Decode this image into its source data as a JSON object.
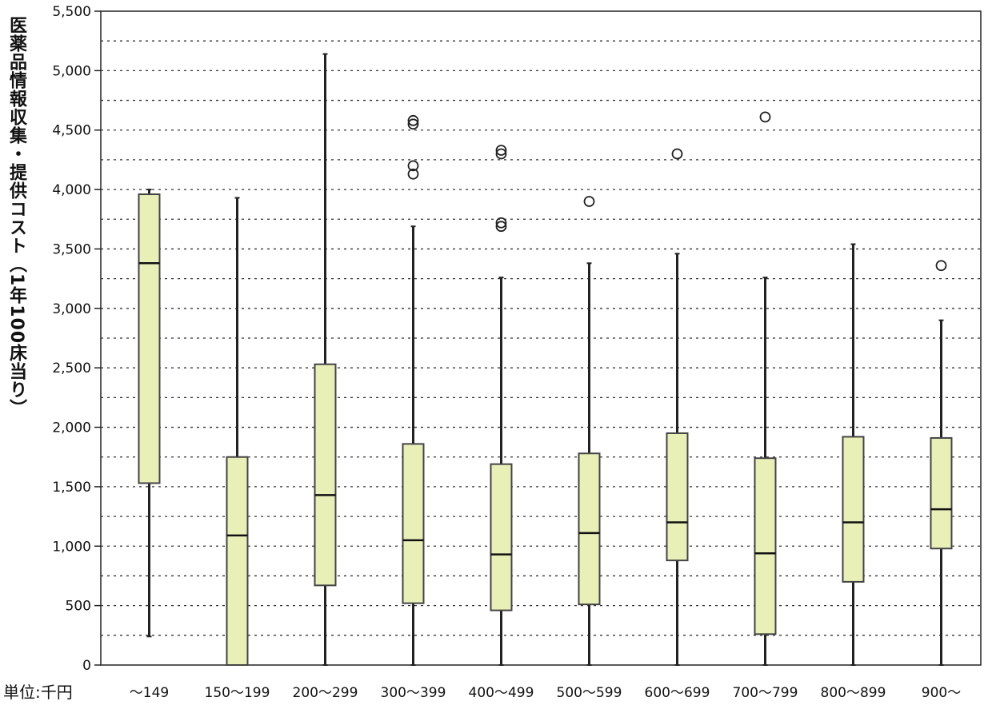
{
  "chart_data": {
    "type": "box",
    "title": "",
    "ylabel": "医薬品情報収集・提供コスト（1年100床当り）",
    "unit_label": "単位:千円",
    "xlabel": "",
    "ylim": [
      0,
      5500
    ],
    "yticks": [
      0,
      500,
      1000,
      1500,
      2000,
      2500,
      3000,
      3500,
      4000,
      4500,
      5000,
      5500
    ],
    "ytick_labels": [
      "0",
      "500",
      "1,000",
      "1,500",
      "2,000",
      "2,500",
      "3,000",
      "3,500",
      "4,000",
      "4,500",
      "5,000",
      "5,500"
    ],
    "minor_grid_step": 250,
    "grid": true,
    "box_color": "#e8f0b8",
    "categories": [
      "～149",
      "150～199",
      "200～299",
      "300～399",
      "400～499",
      "500～599",
      "600～699",
      "700～799",
      "800～899",
      "900～"
    ],
    "boxes": [
      {
        "whisker_low": 240,
        "q1": 1530,
        "median": 3380,
        "q3": 3960,
        "whisker_high": 4000,
        "outliers": []
      },
      {
        "whisker_low": 0,
        "q1": 0,
        "median": 1090,
        "q3": 1750,
        "whisker_high": 3930,
        "outliers": []
      },
      {
        "whisker_low": 0,
        "q1": 670,
        "median": 1430,
        "q3": 2530,
        "whisker_high": 5140,
        "outliers": []
      },
      {
        "whisker_low": 0,
        "q1": 520,
        "median": 1050,
        "q3": 1860,
        "whisker_high": 3690,
        "outliers": [
          4130,
          4200,
          4550,
          4580
        ]
      },
      {
        "whisker_low": 0,
        "q1": 460,
        "median": 930,
        "q3": 1690,
        "whisker_high": 3260,
        "outliers": [
          3690,
          3720,
          4300,
          4330
        ]
      },
      {
        "whisker_low": 0,
        "q1": 510,
        "median": 1110,
        "q3": 1780,
        "whisker_high": 3380,
        "outliers": [
          3900
        ]
      },
      {
        "whisker_low": 0,
        "q1": 880,
        "median": 1200,
        "q3": 1950,
        "whisker_high": 3460,
        "outliers": [
          4300
        ]
      },
      {
        "whisker_low": 0,
        "q1": 260,
        "median": 940,
        "q3": 1740,
        "whisker_high": 3260,
        "outliers": [
          4610
        ]
      },
      {
        "whisker_low": 0,
        "q1": 700,
        "median": 1200,
        "q3": 1920,
        "whisker_high": 3540,
        "outliers": []
      },
      {
        "whisker_low": 0,
        "q1": 980,
        "median": 1310,
        "q3": 1910,
        "whisker_high": 2900,
        "outliers": [
          3360
        ]
      }
    ]
  }
}
